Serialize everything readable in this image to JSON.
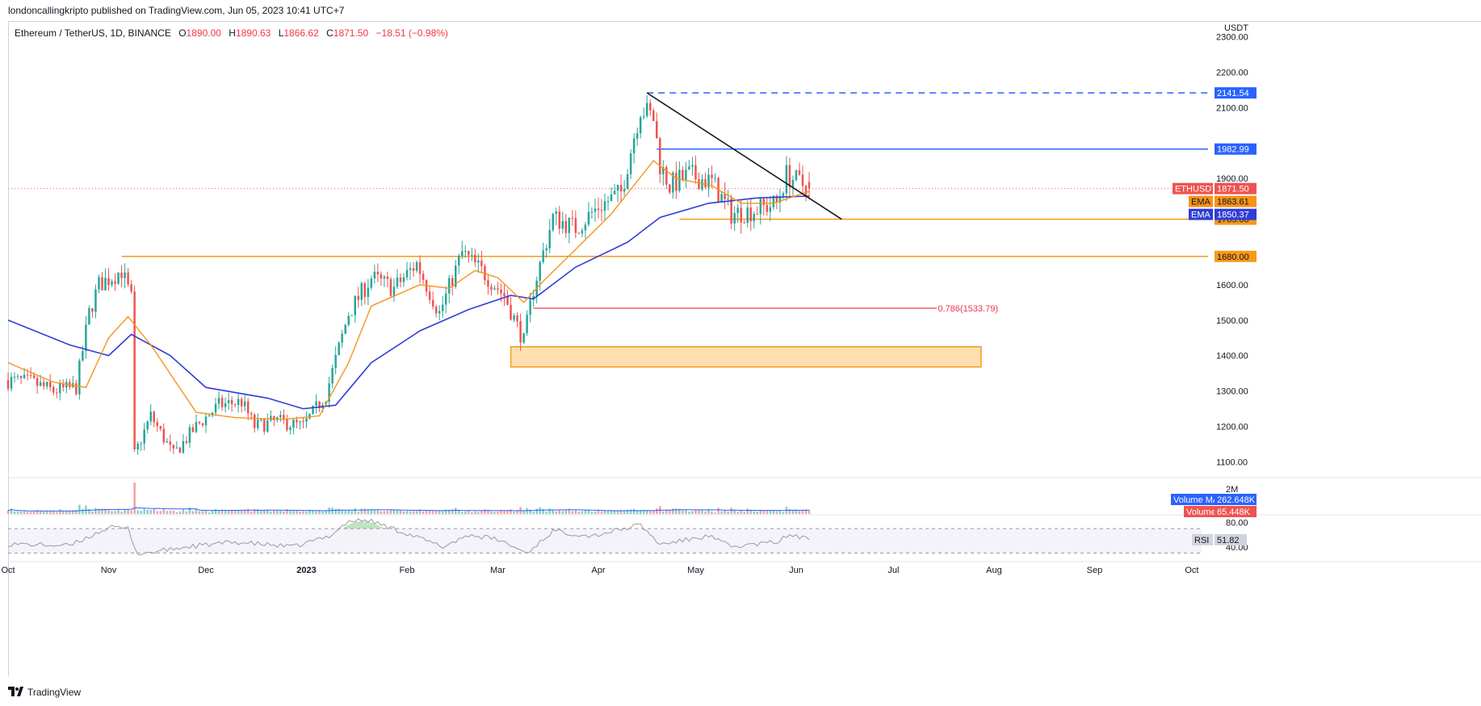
{
  "publisher": "londoncallingkripto published on TradingView.com, Jun 05, 2023 10:41 UTC+7",
  "header": {
    "symbol": "Ethereum / TetherUS, 1D, BINANCE",
    "o_label": "O",
    "o_value": "1890.00",
    "h_label": "H",
    "h_value": "1890.63",
    "l_label": "L",
    "l_value": "1866.62",
    "c_label": "C",
    "c_value": "1871.50",
    "change": "−18.51 (−0.98%)"
  },
  "footer": {
    "brand": "TradingView"
  },
  "colors": {
    "bull": "#26a69a",
    "bear": "#ef5350",
    "ema_fast": "#f7931a",
    "ema_slow": "#2f3ed6",
    "level_orange": "#f59a1a",
    "level_blue": "#2962ff",
    "fib_red": "#e63950",
    "rsi": "#9a9a9a"
  },
  "chart_data": [
    {
      "type": "candlestick",
      "title": "",
      "currency_label": "USDT",
      "x_ticks": [
        "Oct",
        "Nov",
        "Dec",
        "2023",
        "Feb",
        "Mar",
        "Apr",
        "May",
        "Jun",
        "Jul",
        "Aug",
        "Sep",
        "Oct"
      ],
      "y_ticks": [
        "2300.00",
        "2200.00",
        "2100.00",
        "2000.00",
        "1900.00",
        "1800.00",
        "1700.00",
        "1600.00",
        "1500.00",
        "1400.00",
        "1300.00",
        "1200.00",
        "1100.00"
      ],
      "y_hidden_ticks": [
        "2000.00",
        "1800.00",
        "1700.00"
      ],
      "ylim": [
        1060,
        2340
      ],
      "date_range": [
        "2022-10-01",
        "2023-06-05"
      ],
      "close_path": [
        [
          "2022-10-01",
          1330
        ],
        [
          "2022-10-08",
          1325
        ],
        [
          "2022-10-15",
          1300
        ],
        [
          "2022-10-22",
          1310
        ],
        [
          "2022-10-26",
          1520
        ],
        [
          "2022-10-29",
          1600
        ],
        [
          "2022-11-05",
          1640
        ],
        [
          "2022-11-08",
          1560
        ],
        [
          "2022-11-09",
          1120
        ],
        [
          "2022-11-14",
          1230
        ],
        [
          "2022-11-21",
          1120
        ],
        [
          "2022-11-28",
          1200
        ],
        [
          "2022-12-05",
          1260
        ],
        [
          "2022-12-12",
          1270
        ],
        [
          "2022-12-16",
          1200
        ],
        [
          "2022-12-23",
          1215
        ],
        [
          "2022-12-31",
          1200
        ],
        [
          "2023-01-07",
          1290
        ],
        [
          "2023-01-14",
          1520
        ],
        [
          "2023-01-21",
          1620
        ],
        [
          "2023-01-28",
          1590
        ],
        [
          "2023-02-04",
          1660
        ],
        [
          "2023-02-11",
          1520
        ],
        [
          "2023-02-18",
          1690
        ],
        [
          "2023-02-25",
          1630
        ],
        [
          "2023-03-03",
          1570
        ],
        [
          "2023-03-09",
          1440
        ],
        [
          "2023-03-12",
          1590
        ],
        [
          "2023-03-18",
          1790
        ],
        [
          "2023-03-25",
          1760
        ],
        [
          "2023-04-01",
          1820
        ],
        [
          "2023-04-08",
          1860
        ],
        [
          "2023-04-14",
          2100
        ],
        [
          "2023-04-18",
          2070
        ],
        [
          "2023-04-20",
          1940
        ],
        [
          "2023-04-23",
          1880
        ],
        [
          "2023-04-29",
          1910
        ],
        [
          "2023-05-06",
          1890
        ],
        [
          "2023-05-12",
          1800
        ],
        [
          "2023-05-19",
          1810
        ],
        [
          "2023-05-26",
          1830
        ],
        [
          "2023-05-29",
          1910
        ],
        [
          "2023-06-05",
          1871.5
        ]
      ],
      "ema_fast_path": [
        [
          "2022-10-01",
          1380
        ],
        [
          "2022-10-15",
          1325
        ],
        [
          "2022-10-25",
          1310
        ],
        [
          "2022-11-01",
          1450
        ],
        [
          "2022-11-07",
          1510
        ],
        [
          "2022-11-14",
          1430
        ],
        [
          "2022-11-28",
          1240
        ],
        [
          "2022-12-10",
          1225
        ],
        [
          "2022-12-25",
          1220
        ],
        [
          "2023-01-05",
          1230
        ],
        [
          "2023-01-14",
          1380
        ],
        [
          "2023-01-21",
          1540
        ],
        [
          "2023-02-05",
          1600
        ],
        [
          "2023-02-14",
          1590
        ],
        [
          "2023-02-22",
          1640
        ],
        [
          "2023-03-01",
          1620
        ],
        [
          "2023-03-09",
          1550
        ],
        [
          "2023-03-15",
          1610
        ],
        [
          "2023-03-25",
          1700
        ],
        [
          "2023-04-05",
          1800
        ],
        [
          "2023-04-18",
          1950
        ],
        [
          "2023-04-25",
          1900
        ],
        [
          "2023-05-06",
          1880
        ],
        [
          "2023-05-15",
          1830
        ],
        [
          "2023-05-25",
          1830
        ],
        [
          "2023-06-05",
          1863.61
        ]
      ],
      "ema_slow_path": [
        [
          "2022-10-01",
          1500
        ],
        [
          "2022-10-20",
          1430
        ],
        [
          "2022-11-01",
          1400
        ],
        [
          "2022-11-08",
          1460
        ],
        [
          "2022-11-20",
          1400
        ],
        [
          "2022-12-01",
          1310
        ],
        [
          "2022-12-20",
          1280
        ],
        [
          "2022-12-31",
          1250
        ],
        [
          "2023-01-10",
          1260
        ],
        [
          "2023-01-21",
          1380
        ],
        [
          "2023-02-05",
          1470
        ],
        [
          "2023-02-20",
          1530
        ],
        [
          "2023-03-05",
          1570
        ],
        [
          "2023-03-12",
          1560
        ],
        [
          "2023-03-25",
          1650
        ],
        [
          "2023-04-10",
          1720
        ],
        [
          "2023-04-20",
          1790
        ],
        [
          "2023-05-05",
          1830
        ],
        [
          "2023-05-20",
          1845
        ],
        [
          "2023-06-05",
          1850.37
        ]
      ],
      "trendline": [
        [
          "2023-04-16",
          2141.54
        ],
        [
          "2023-06-15",
          1785.0
        ]
      ],
      "levels": [
        {
          "label": "2141.54",
          "value": 2141.54,
          "start": "2023-04-16",
          "style": "dashed",
          "color": "#2962ff"
        },
        {
          "label": "1982.99",
          "value": 1982.99,
          "start": "2023-04-19",
          "style": "solid",
          "color": "#2962ff"
        },
        {
          "label": "1785.00",
          "value": 1785.0,
          "start": "2023-04-26",
          "style": "solid",
          "color": "#f59a1a"
        },
        {
          "label": "1680.00",
          "value": 1680.0,
          "start": "2022-11-05",
          "style": "solid",
          "color": "#f59a1a"
        }
      ],
      "fib": {
        "label": "0.786(1533.79)",
        "value": 1533.79,
        "start": "2023-03-12",
        "end": "2023-07-28"
      },
      "zone": {
        "start": "2023-03-05",
        "end": "2023-07-28",
        "low": 1368,
        "high": 1425
      },
      "last_price": {
        "label": "ETHUSDT",
        "value": 1871.5,
        "value_text": "1871.50"
      },
      "ema_labels": [
        {
          "label": "EMA",
          "value_text": "1863.61",
          "value": 1863.61,
          "color": "#f7931a"
        },
        {
          "label": "EMA",
          "value_text": "1850.37",
          "value": 1850.37,
          "color": "#2f3ed6"
        }
      ]
    },
    {
      "type": "bar",
      "title": "Volume",
      "axis_tick": "2M",
      "ylim": [
        0,
        2000000
      ],
      "series": [
        {
          "name": "Volume MA",
          "value_text": "262.648K",
          "value": 262648
        },
        {
          "name": "Volume",
          "value_text": "65.448K",
          "value": 65448
        }
      ]
    },
    {
      "type": "line",
      "title": "RSI",
      "value_text": "51.82",
      "value": 51.82,
      "y_ticks": [
        "80.00",
        "40.00"
      ],
      "ylim": [
        20,
        90
      ],
      "bands": [
        70,
        30
      ],
      "path": [
        [
          "2022-10-01",
          45
        ],
        [
          "2022-10-20",
          42
        ],
        [
          "2022-11-01",
          72
        ],
        [
          "2022-11-07",
          70
        ],
        [
          "2022-11-10",
          28
        ],
        [
          "2022-11-25",
          40
        ],
        [
          "2022-12-10",
          48
        ],
        [
          "2022-12-28",
          40
        ],
        [
          "2023-01-08",
          58
        ],
        [
          "2023-01-14",
          82
        ],
        [
          "2023-01-20",
          84
        ],
        [
          "2023-02-01",
          62
        ],
        [
          "2023-02-12",
          40
        ],
        [
          "2023-02-20",
          60
        ],
        [
          "2023-03-01",
          52
        ],
        [
          "2023-03-10",
          30
        ],
        [
          "2023-03-18",
          66
        ],
        [
          "2023-03-30",
          58
        ],
        [
          "2023-04-14",
          76
        ],
        [
          "2023-04-20",
          44
        ],
        [
          "2023-05-05",
          58
        ],
        [
          "2023-05-12",
          40
        ],
        [
          "2023-05-26",
          48
        ],
        [
          "2023-05-30",
          60
        ],
        [
          "2023-06-05",
          51.82
        ]
      ]
    }
  ]
}
